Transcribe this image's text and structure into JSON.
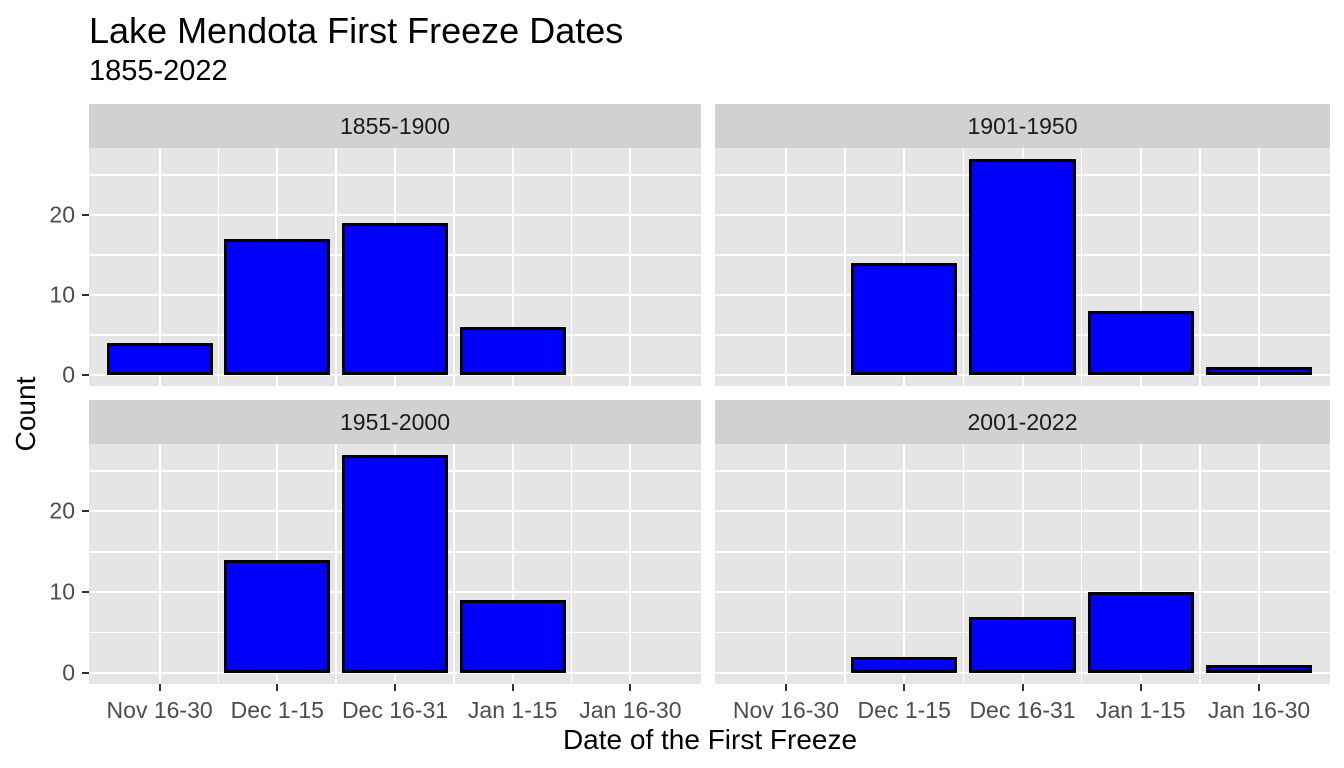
{
  "chart_data": {
    "type": "bar",
    "title": "Lake Mendota First Freeze Dates",
    "subtitle": "1855-2022",
    "xlabel": "Date of the First Freeze",
    "ylabel": "Count",
    "categories": [
      "Nov 16-30",
      "Dec 1-15",
      "Dec 16-31",
      "Jan 1-15",
      "Jan 16-30"
    ],
    "facets": [
      {
        "label": "1855-1900",
        "values": [
          4,
          17,
          19,
          6,
          0
        ]
      },
      {
        "label": "1901-1950",
        "values": [
          0,
          14,
          27,
          8,
          1
        ]
      },
      {
        "label": "1951-2000",
        "values": [
          0,
          14,
          27,
          9,
          0
        ]
      },
      {
        "label": "2001-2022",
        "values": [
          0,
          2,
          7,
          10,
          1
        ]
      }
    ],
    "y_ticks": [
      0,
      10,
      20
    ],
    "y_minor_ticks": [
      5,
      15,
      25
    ],
    "ylim": [
      -1.35,
      28.35
    ],
    "bar_width_fraction": 0.9,
    "grid": true,
    "legend": "none",
    "colors": {
      "bar_fill": "#0000FF",
      "bar_stroke": "#000000",
      "panel_bg": "#E5E5E5",
      "strip_bg": "#D1D1D1",
      "grid": "#FFFFFF",
      "axis_text": "#4D4D4D",
      "tick_mark": "#333333",
      "title_text": "#000000"
    }
  }
}
